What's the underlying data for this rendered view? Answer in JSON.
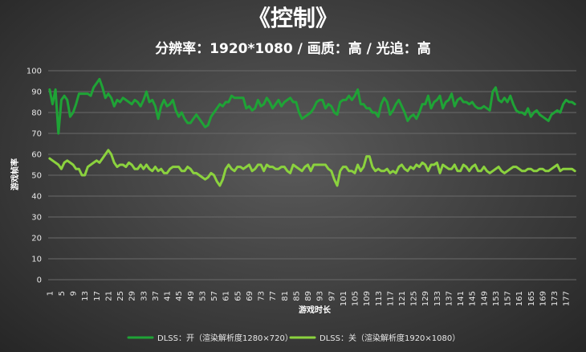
{
  "chart_data": {
    "type": "line",
    "title": "《控制》",
    "subtitle": "分辨率：1920*1080 / 画质：高 / 光追：高",
    "xlabel": "游戏时长",
    "ylabel": "游戏帧率",
    "ylim": [
      0,
      100
    ],
    "yticks": [
      0,
      10,
      20,
      30,
      40,
      50,
      60,
      70,
      80,
      90,
      100
    ],
    "x_start": 1,
    "x_count": 180,
    "x_tick_step": 4,
    "grid": true,
    "legend_position": "bottom",
    "series": [
      {
        "name": "DLSS：开（渲染解析度1280×720）",
        "color": "#1fa336",
        "values": [
          91,
          84,
          91,
          70,
          86,
          88,
          86,
          78,
          80,
          84,
          89,
          89,
          89,
          89,
          88,
          92,
          94,
          96,
          92,
          87,
          89,
          87,
          83,
          86,
          85,
          87,
          86,
          85,
          84,
          86,
          85,
          83,
          86,
          90,
          85,
          86,
          83,
          77,
          83,
          86,
          83,
          84,
          86,
          81,
          78,
          80,
          77,
          75,
          75,
          77,
          79,
          77,
          75,
          73,
          74,
          78,
          80,
          82,
          84,
          83,
          85,
          85,
          88,
          87,
          87,
          87,
          87,
          82,
          83,
          81,
          82,
          86,
          83,
          84,
          87,
          85,
          82,
          84,
          86,
          83,
          85,
          86,
          87,
          85,
          85,
          80,
          77,
          78,
          79,
          80,
          82,
          85,
          86,
          86,
          82,
          84,
          83,
          80,
          79,
          85,
          86,
          86,
          88,
          86,
          88,
          91,
          84,
          84,
          82,
          82,
          80,
          80,
          78,
          84,
          87,
          85,
          79,
          81,
          84,
          86,
          83,
          80,
          76,
          78,
          79,
          77,
          80,
          84,
          84,
          88,
          82,
          85,
          86,
          88,
          82,
          85,
          86,
          89,
          83,
          86,
          87,
          85,
          85,
          84,
          85,
          83,
          82,
          82,
          83,
          82,
          81,
          90,
          92,
          86,
          85,
          87,
          85,
          88,
          84,
          81,
          80,
          80,
          79,
          82,
          78,
          80,
          81,
          79,
          78,
          77,
          76,
          79,
          80,
          81,
          80,
          84,
          86,
          85,
          85,
          84
        ]
      },
      {
        "name": "DLSS：关（渲染解析度1920×1080）",
        "color": "#8bd23e",
        "values": [
          58,
          57,
          56,
          55,
          53,
          56,
          57,
          56,
          55,
          53,
          53,
          50,
          50,
          54,
          55,
          56,
          57,
          56,
          58,
          60,
          62,
          60,
          56,
          54,
          55,
          55,
          54,
          56,
          55,
          53,
          53,
          55,
          53,
          55,
          53,
          52,
          54,
          52,
          53,
          51,
          51,
          53,
          54,
          54,
          54,
          52,
          52,
          54,
          53,
          51,
          51,
          50,
          49,
          48,
          49,
          51,
          50,
          47,
          45,
          48,
          53,
          55,
          53,
          52,
          54,
          54,
          53,
          54,
          55,
          52,
          53,
          55,
          55,
          52,
          55,
          54,
          54,
          53,
          53,
          54,
          54,
          52,
          51,
          55,
          54,
          53,
          52,
          54,
          55,
          52,
          55,
          55,
          55,
          55,
          55,
          53,
          52,
          48,
          45,
          52,
          54,
          54,
          52,
          52,
          51,
          55,
          52,
          54,
          59,
          59,
          54,
          52,
          53,
          52,
          52,
          53,
          51,
          52,
          51,
          54,
          55,
          53,
          52,
          54,
          53,
          55,
          54,
          56,
          55,
          52,
          55,
          55,
          56,
          51,
          55,
          54,
          53,
          53,
          55,
          52,
          52,
          55,
          54,
          52,
          54,
          55,
          52,
          52,
          54,
          52,
          51,
          52,
          53,
          54,
          52,
          51,
          52,
          53,
          54,
          54,
          53,
          52,
          52,
          53,
          53,
          52,
          52,
          53,
          53,
          52,
          52,
          53,
          54,
          55,
          52,
          53,
          53,
          53,
          53,
          52
        ]
      }
    ]
  }
}
